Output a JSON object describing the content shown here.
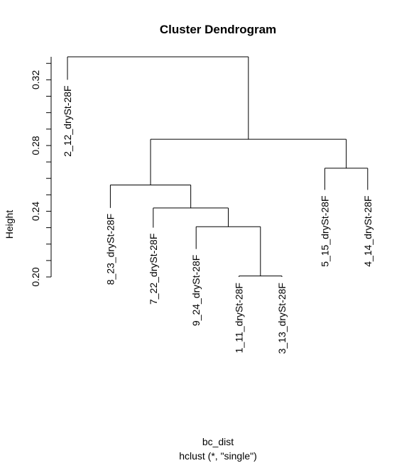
{
  "chart_data": {
    "type": "dendrogram",
    "title": "Cluster Dendrogram",
    "xlabel": "bc_dist",
    "sublabel": "hclust (*, \"single\")",
    "ylabel": "Height",
    "ylim": [
      0.2,
      0.334
    ],
    "yticks": [
      0.2,
      0.24,
      0.28,
      0.32
    ],
    "leaves": [
      {
        "label": "2_12_drySt-28F",
        "top": 0.32
      },
      {
        "label": "8_23_drySt-28F",
        "top": 0.242
      },
      {
        "label": "7_22_drySt-28F",
        "top": 0.23
      },
      {
        "label": "9_24_drySt-28F",
        "top": 0.217
      },
      {
        "label": "1_11_drySt-28F",
        "top": 0.2
      },
      {
        "label": "3_13_drySt-28F",
        "top": 0.2
      },
      {
        "label": "5_15_drySt-28F",
        "top": 0.253
      },
      {
        "label": "4_14_drySt-28F",
        "top": 0.253
      }
    ],
    "merges": [
      {
        "left": "L4",
        "right": "L5",
        "height": 0.2006
      },
      {
        "left": "L3",
        "right": "M0",
        "height": 0.2306
      },
      {
        "left": "L2",
        "right": "M1",
        "height": 0.242
      },
      {
        "left": "L6",
        "right": "L7",
        "height": 0.2662
      },
      {
        "left": "L1",
        "right": "M2",
        "height": 0.256
      },
      {
        "left": "M4",
        "right": "M3",
        "height": 0.2838
      },
      {
        "left": "L0",
        "right": "M5",
        "height": 0.334
      }
    ]
  }
}
